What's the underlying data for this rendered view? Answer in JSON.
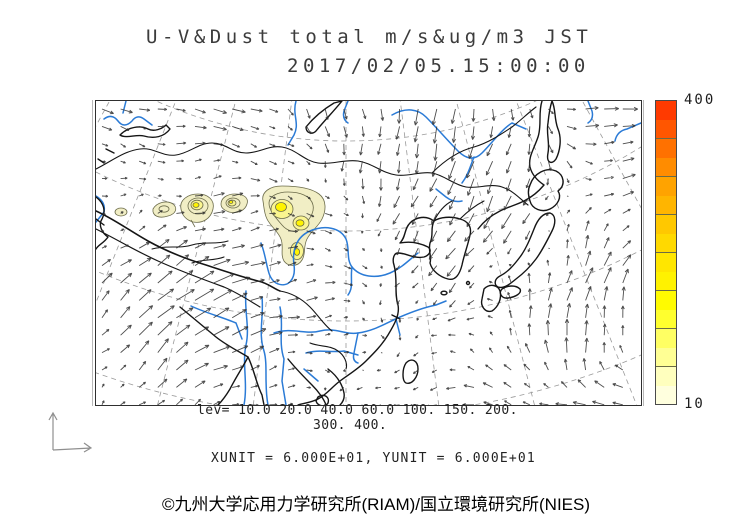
{
  "title": {
    "line1": "U-V&Dust total m/s&ug/m3 JST",
    "line2": "2017/02/05.15:00:00"
  },
  "legend": {
    "lev_line1": "lev= 10.0 20.0 40.0 60.0 100. 150. 200.",
    "lev_line2": "300. 400.",
    "units_line": "XUNIT = 6.000E+01, YUNIT = 6.000E+01"
  },
  "colorbar": {
    "max_label": "400",
    "min_label": "10",
    "colors_top_to_bottom": [
      "#FF3A00",
      "#FF5600",
      "#FF7100",
      "#FF8C00",
      "#FFA300",
      "#FFB500",
      "#FFC800",
      "#FFD900",
      "#FFE600",
      "#FFF200",
      "#FFFB00",
      "#FFFF2E",
      "#FFFF63",
      "#FFFF94",
      "#FFFFBE",
      "#FFFFDE"
    ],
    "separator_every": 2,
    "separator_color": "#6b6b45"
  },
  "footer": {
    "copyright": "©九州大学応用力学研究所(RIAM)/国立環境研究所(NIES)"
  },
  "map_style": {
    "coast": "#151515",
    "river": "#2B7BD6",
    "graticule": "#9a9a9a",
    "arrow": "#2e2e2e",
    "dust_outer": "#f1eec5",
    "dust_mid": "#faf590",
    "dust_core": "#fff400",
    "dust_line": "#6b6b4a"
  },
  "chart_data": {
    "type": "map",
    "subtype": "wind-vectors+dust-contour-shading",
    "title": "U-V&Dust total m/s&ug/m3 JST",
    "valid_time": "2017/02/05.15:00:00",
    "time_zone": "JST",
    "variables": {
      "vectors": "U-V wind (m/s)",
      "shading": "Dust total (ug/m3)"
    },
    "contour_levels": [
      10,
      20,
      40,
      60,
      100,
      150,
      200,
      300,
      400
    ],
    "colorbar_range": [
      10,
      400
    ],
    "xunit": "6.000E+01",
    "yunit": "6.000E+01",
    "region": "East Asia",
    "wind_grid": {
      "cols": 10,
      "rows": 6,
      "scale": 2.7,
      "uv": [
        [
          [
            4,
            1
          ],
          [
            4,
            1
          ],
          [
            5,
            1
          ],
          [
            3,
            2
          ],
          [
            1,
            4
          ],
          [
            0,
            5
          ],
          [
            -1,
            6
          ],
          [
            1,
            3
          ],
          [
            5,
            0
          ],
          [
            5,
            -1
          ]
        ],
        [
          [
            2,
            1
          ],
          [
            2,
            0
          ],
          [
            3,
            0
          ],
          [
            2,
            1
          ],
          [
            0,
            3
          ],
          [
            -1,
            5
          ],
          [
            -2,
            6
          ],
          [
            -2,
            5
          ],
          [
            3,
            1
          ],
          [
            5,
            -1
          ]
        ],
        [
          [
            1,
            0
          ],
          [
            2,
            -1
          ],
          [
            4,
            -1
          ],
          [
            3,
            0
          ],
          [
            2,
            1
          ],
          [
            -2,
            3
          ],
          [
            -3,
            5
          ],
          [
            -3,
            5
          ],
          [
            1,
            -3
          ],
          [
            4,
            -2
          ]
        ],
        [
          [
            3,
            -3
          ],
          [
            6,
            -5
          ],
          [
            7,
            -3
          ],
          [
            4,
            -1
          ],
          [
            3,
            0
          ],
          [
            -1,
            2
          ],
          [
            -3,
            3
          ],
          [
            0,
            -3
          ],
          [
            2,
            -6
          ],
          [
            2,
            -4
          ]
        ],
        [
          [
            2,
            -2
          ],
          [
            5,
            -5
          ],
          [
            6,
            -3
          ],
          [
            4,
            -1
          ],
          [
            2,
            0
          ],
          [
            0,
            1
          ],
          [
            -2,
            0
          ],
          [
            -1,
            -4
          ],
          [
            1,
            -6
          ],
          [
            -2,
            -3
          ]
        ],
        [
          [
            1,
            -1
          ],
          [
            2,
            -2
          ],
          [
            3,
            -1
          ],
          [
            2,
            0
          ],
          [
            -2,
            1
          ],
          [
            -3,
            1
          ],
          [
            -4,
            0
          ],
          [
            -3,
            -1
          ],
          [
            -4,
            -1
          ],
          [
            -4,
            0
          ]
        ]
      ]
    }
  }
}
